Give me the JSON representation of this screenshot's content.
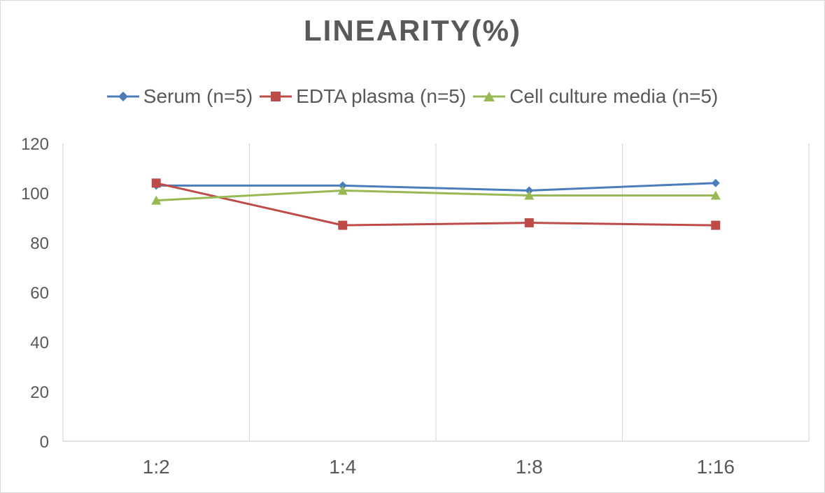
{
  "chart_data": {
    "type": "line",
    "title": "LINEARITY(%)",
    "categories": [
      "1:2",
      "1:4",
      "1:8",
      "1:16"
    ],
    "ylim": [
      0,
      120
    ],
    "yticks": [
      0,
      20,
      40,
      60,
      80,
      100,
      120
    ],
    "grid": "vertical",
    "legend_position": "top",
    "series": [
      {
        "name": "Serum (n=5)",
        "color": "#4a7ebb",
        "marker": "diamond",
        "values": [
          103,
          103,
          101,
          104
        ]
      },
      {
        "name": "EDTA plasma (n=5)",
        "color": "#be4b48",
        "marker": "square",
        "values": [
          104,
          87,
          88,
          87
        ]
      },
      {
        "name": "Cell culture media (n=5)",
        "color": "#98b954",
        "marker": "triangle",
        "values": [
          97,
          101,
          99,
          99
        ]
      }
    ]
  }
}
